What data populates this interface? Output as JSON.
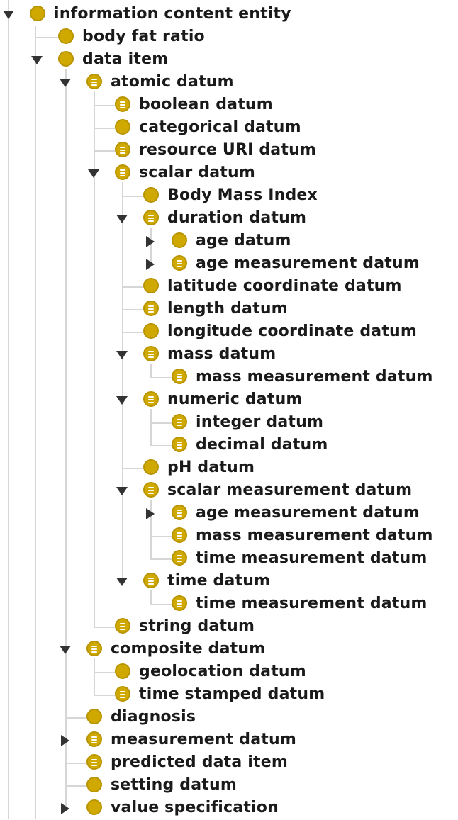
{
  "tree": [
    {
      "label": "information content entity",
      "level": 0,
      "icon": "defined-class-icon",
      "toggle": "expanded"
    },
    {
      "label": "body fat ratio",
      "level": 1,
      "icon": "class-icon",
      "toggle": "none"
    },
    {
      "label": "data item",
      "level": 1,
      "icon": "class-icon",
      "toggle": "expanded"
    },
    {
      "label": "atomic datum",
      "level": 2,
      "icon": "equivalent-class-icon",
      "toggle": "expanded"
    },
    {
      "label": "boolean datum",
      "level": 3,
      "icon": "equivalent-class-icon",
      "toggle": "none"
    },
    {
      "label": "categorical datum",
      "level": 3,
      "icon": "class-icon",
      "toggle": "none"
    },
    {
      "label": "resource URI datum",
      "level": 3,
      "icon": "equivalent-class-icon",
      "toggle": "none"
    },
    {
      "label": "scalar datum",
      "level": 3,
      "icon": "equivalent-class-icon",
      "toggle": "expanded"
    },
    {
      "label": "Body Mass Index",
      "level": 4,
      "icon": "class-icon",
      "toggle": "none"
    },
    {
      "label": "duration datum",
      "level": 4,
      "icon": "equivalent-class-icon",
      "toggle": "expanded"
    },
    {
      "label": "age datum",
      "level": 5,
      "icon": "class-icon",
      "toggle": "collapsed"
    },
    {
      "label": "age measurement datum",
      "level": 5,
      "icon": "equivalent-class-icon",
      "toggle": "collapsed"
    },
    {
      "label": "latitude coordinate datum",
      "level": 4,
      "icon": "class-icon",
      "toggle": "none"
    },
    {
      "label": "length datum",
      "level": 4,
      "icon": "equivalent-class-icon",
      "toggle": "none"
    },
    {
      "label": "longitude coordinate datum",
      "level": 4,
      "icon": "class-icon",
      "toggle": "none"
    },
    {
      "label": "mass datum",
      "level": 4,
      "icon": "equivalent-class-icon",
      "toggle": "expanded"
    },
    {
      "label": "mass measurement datum",
      "level": 5,
      "icon": "equivalent-class-icon",
      "toggle": "none"
    },
    {
      "label": "numeric datum",
      "level": 4,
      "icon": "equivalent-class-icon",
      "toggle": "expanded"
    },
    {
      "label": "integer datum",
      "level": 5,
      "icon": "equivalent-class-icon",
      "toggle": "none"
    },
    {
      "label": "decimal datum",
      "level": 5,
      "icon": "equivalent-class-icon",
      "toggle": "none"
    },
    {
      "label": "pH datum",
      "level": 4,
      "icon": "class-icon",
      "toggle": "none"
    },
    {
      "label": "scalar measurement datum",
      "level": 4,
      "icon": "equivalent-class-icon",
      "toggle": "expanded"
    },
    {
      "label": "age measurement datum",
      "level": 5,
      "icon": "equivalent-class-icon",
      "toggle": "collapsed"
    },
    {
      "label": "mass measurement datum",
      "level": 5,
      "icon": "equivalent-class-icon",
      "toggle": "none"
    },
    {
      "label": "time measurement datum",
      "level": 5,
      "icon": "equivalent-class-icon",
      "toggle": "none"
    },
    {
      "label": "time datum",
      "level": 4,
      "icon": "equivalent-class-icon",
      "toggle": "expanded"
    },
    {
      "label": "time measurement datum",
      "level": 5,
      "icon": "equivalent-class-icon",
      "toggle": "none"
    },
    {
      "label": "string datum",
      "level": 3,
      "icon": "equivalent-class-icon",
      "toggle": "none"
    },
    {
      "label": "composite datum",
      "level": 2,
      "icon": "equivalent-class-icon",
      "toggle": "expanded"
    },
    {
      "label": "geolocation datum",
      "level": 3,
      "icon": "class-icon",
      "toggle": "none"
    },
    {
      "label": "time stamped datum",
      "level": 3,
      "icon": "equivalent-class-icon",
      "toggle": "none"
    },
    {
      "label": "diagnosis",
      "level": 2,
      "icon": "class-icon",
      "toggle": "none"
    },
    {
      "label": "measurement datum",
      "level": 2,
      "icon": "equivalent-class-icon",
      "toggle": "collapsed"
    },
    {
      "label": "predicted data item",
      "level": 2,
      "icon": "equivalent-class-icon",
      "toggle": "none"
    },
    {
      "label": "setting datum",
      "level": 2,
      "icon": "class-icon",
      "toggle": "none"
    },
    {
      "label": "value specification",
      "level": 2,
      "icon": "class-icon",
      "toggle": "collapsed"
    }
  ],
  "colors": {
    "class_fill": "#cfa800",
    "class_border": "#b89400",
    "connector": "#d6d6d6",
    "text": "#1a1a1a",
    "toggle": "#333333"
  }
}
